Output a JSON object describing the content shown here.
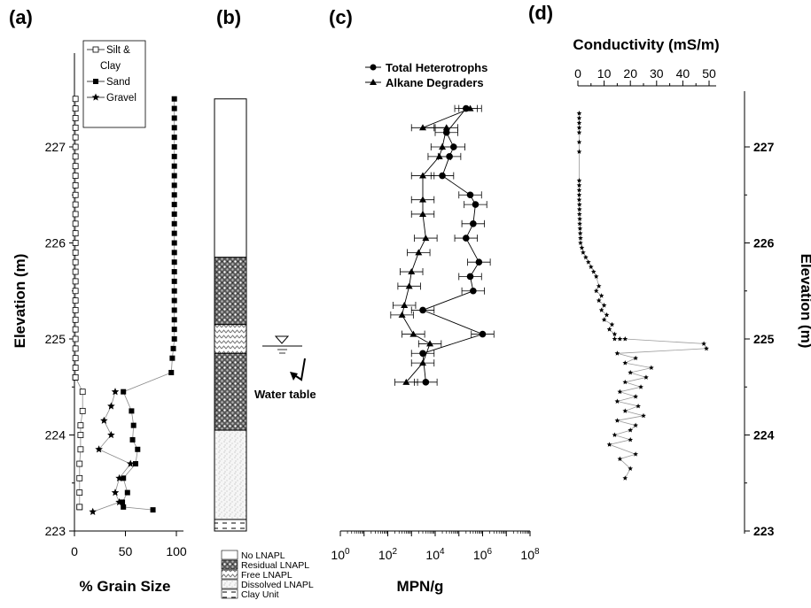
{
  "chart_data": [
    {
      "panel": "(a)",
      "type": "line",
      "xlabel": "% Grain Size",
      "ylabel": "Elevation (m)",
      "xlim": [
        0,
        100
      ],
      "ylim": [
        223,
        227.6
      ],
      "xticks": [
        "0",
        "50",
        "100"
      ],
      "yticks": [
        "223",
        "224",
        "225",
        "226",
        "227"
      ],
      "legend": [
        "Silt &",
        "Clay",
        "Sand",
        "Gravel"
      ],
      "legend_position": "top-right",
      "series": [
        {
          "name": "Silt & Clay",
          "marker": "open-square",
          "x": [
            1,
            1,
            1,
            1,
            1,
            1,
            1,
            1,
            1,
            1,
            1,
            1,
            1,
            1,
            1,
            1,
            1,
            1,
            1,
            1,
            1,
            1,
            1,
            1,
            1,
            1,
            1,
            1,
            1,
            1,
            1,
            8,
            8,
            6,
            6,
            6,
            5,
            5,
            5,
            5,
            5
          ],
          "y": [
            227.5,
            227.4,
            227.3,
            227.2,
            227.1,
            227.0,
            226.9,
            226.8,
            226.7,
            226.6,
            226.5,
            226.4,
            226.3,
            226.2,
            226.1,
            226.0,
            225.9,
            225.8,
            225.7,
            225.6,
            225.5,
            225.4,
            225.3,
            225.2,
            225.1,
            225.0,
            224.9,
            224.8,
            224.7,
            224.6,
            224.6,
            224.45,
            224.25,
            224.1,
            224.0,
            223.85,
            223.7,
            223.55,
            223.4,
            223.25,
            223.25
          ]
        },
        {
          "name": "Sand",
          "marker": "filled-square",
          "x": [
            98,
            98,
            98,
            98,
            98,
            98,
            98,
            98,
            98,
            98,
            98,
            98,
            98,
            98,
            98,
            98,
            98,
            98,
            98,
            98,
            98,
            98,
            98,
            98,
            98,
            98,
            97,
            96,
            95,
            48,
            56,
            58,
            57,
            62,
            60,
            48,
            52,
            47,
            48,
            77
          ],
          "y": [
            227.5,
            227.4,
            227.3,
            227.2,
            227.1,
            227.0,
            226.9,
            226.8,
            226.7,
            226.6,
            226.5,
            226.4,
            226.3,
            226.2,
            226.1,
            226.0,
            225.9,
            225.8,
            225.7,
            225.6,
            225.5,
            225.4,
            225.3,
            225.2,
            225.1,
            225.0,
            224.9,
            224.8,
            224.65,
            224.45,
            224.25,
            224.1,
            223.95,
            223.85,
            223.7,
            223.55,
            223.4,
            223.3,
            223.25,
            223.22
          ]
        },
        {
          "name": "Gravel",
          "marker": "star",
          "x": [
            40,
            36,
            29,
            36,
            24,
            55,
            44,
            40,
            44,
            18
          ],
          "y": [
            224.45,
            224.3,
            224.15,
            224.0,
            223.85,
            223.7,
            223.55,
            223.4,
            223.3,
            223.2
          ]
        }
      ]
    },
    {
      "panel": "(b)",
      "type": "column-log",
      "legend": [
        "No LNAPL",
        "Residual LNAPL",
        "Free LNAPL",
        "Dissolved LNAPL",
        "Clay Unit"
      ],
      "water_table_label": "Water table",
      "units": [
        {
          "name": "No LNAPL",
          "top": 227.5,
          "bottom": 225.85
        },
        {
          "name": "Residual LNAPL",
          "top": 225.85,
          "bottom": 225.15
        },
        {
          "name": "Free LNAPL",
          "top": 225.15,
          "bottom": 224.85
        },
        {
          "name": "Residual LNAPL",
          "top": 224.85,
          "bottom": 224.05
        },
        {
          "name": "Dissolved LNAPL",
          "top": 224.05,
          "bottom": 223.12
        },
        {
          "name": "Clay Unit",
          "top": 223.12,
          "bottom": 223.0
        }
      ],
      "water_table_elevation": 224.95
    },
    {
      "panel": "(c)",
      "type": "line",
      "xlabel": "MPN/g",
      "xscale": "log",
      "xlim": [
        1,
        100000000
      ],
      "xticks": [
        "10^0",
        "10^2",
        "10^4",
        "10^6",
        "10^8"
      ],
      "legend": [
        "Total Heterotrophs",
        "Alkane Degraders"
      ],
      "legend_position": "top",
      "series": [
        {
          "name": "Total Heterotrophs",
          "marker": "filled-circle",
          "x": [
            200000,
            30000,
            60000,
            40000,
            20000,
            300000,
            500000,
            400000,
            200000,
            700000,
            300000,
            400000,
            3000,
            1000000,
            3000,
            4000
          ],
          "y": [
            227.4,
            227.15,
            227.0,
            226.9,
            226.7,
            226.5,
            226.4,
            226.2,
            226.05,
            225.8,
            225.65,
            225.5,
            225.3,
            225.05,
            224.85,
            224.55
          ],
          "xerr_factor": 3
        },
        {
          "name": "Alkane Degraders",
          "marker": "filled-triangle",
          "x": [
            300000,
            3000,
            30000,
            20000,
            15000,
            3000,
            3000,
            3000,
            4000,
            2000,
            1000,
            800,
            500,
            400,
            1200,
            6000,
            3000,
            600
          ],
          "y": [
            227.4,
            227.2,
            227.2,
            227.0,
            226.9,
            226.7,
            226.45,
            226.3,
            226.05,
            225.9,
            225.7,
            225.55,
            225.35,
            225.25,
            225.05,
            224.95,
            224.75,
            224.55
          ],
          "xerr_factor": 3
        }
      ]
    },
    {
      "panel": "(d)",
      "type": "scatter",
      "xlabel": "Conductivity (mS/m)",
      "ylabel": "Elevation (m)",
      "xlim": [
        0,
        50
      ],
      "ylim": [
        223,
        227.6
      ],
      "xticks": [
        "0",
        "10",
        "20",
        "30",
        "40",
        "50"
      ],
      "yticks": [
        "223",
        "224",
        "225",
        "226",
        "227"
      ],
      "series": [
        {
          "name": "",
          "marker": "star",
          "x": [
            0.5,
            0.5,
            0.5,
            0.5,
            0.5,
            0.5,
            0.5,
            0.5,
            0.5,
            0.5,
            0.5,
            0.5,
            0.6,
            0.6,
            0.6,
            0.7,
            0.7,
            0.8,
            0.9,
            1,
            1,
            1.5,
            2,
            3,
            4,
            5,
            6,
            7,
            8,
            7,
            9,
            8,
            10,
            9,
            11,
            10,
            13,
            12,
            14,
            14,
            16,
            18,
            48,
            49,
            15,
            22,
            18,
            28,
            20,
            26,
            18,
            24,
            16,
            22,
            15,
            23,
            18,
            25,
            15,
            22,
            20,
            14,
            20,
            12,
            22,
            16,
            20,
            18
          ],
          "y": [
            227.35,
            227.3,
            227.25,
            227.2,
            227.15,
            227.05,
            226.95,
            226.65,
            226.6,
            226.55,
            226.5,
            226.45,
            226.4,
            226.35,
            226.3,
            226.25,
            226.2,
            226.15,
            226.1,
            226.05,
            226.0,
            225.95,
            225.9,
            225.85,
            225.8,
            225.75,
            225.7,
            225.65,
            225.55,
            225.5,
            225.45,
            225.4,
            225.35,
            225.3,
            225.25,
            225.2,
            225.15,
            225.1,
            225.05,
            225.0,
            225.0,
            225.0,
            224.95,
            224.9,
            224.85,
            224.8,
            224.75,
            224.7,
            224.65,
            224.6,
            224.55,
            224.5,
            224.45,
            224.4,
            224.35,
            224.3,
            224.25,
            224.2,
            224.15,
            224.1,
            224.05,
            224.0,
            223.95,
            223.9,
            223.8,
            223.75,
            223.65,
            223.55
          ]
        }
      ]
    }
  ]
}
